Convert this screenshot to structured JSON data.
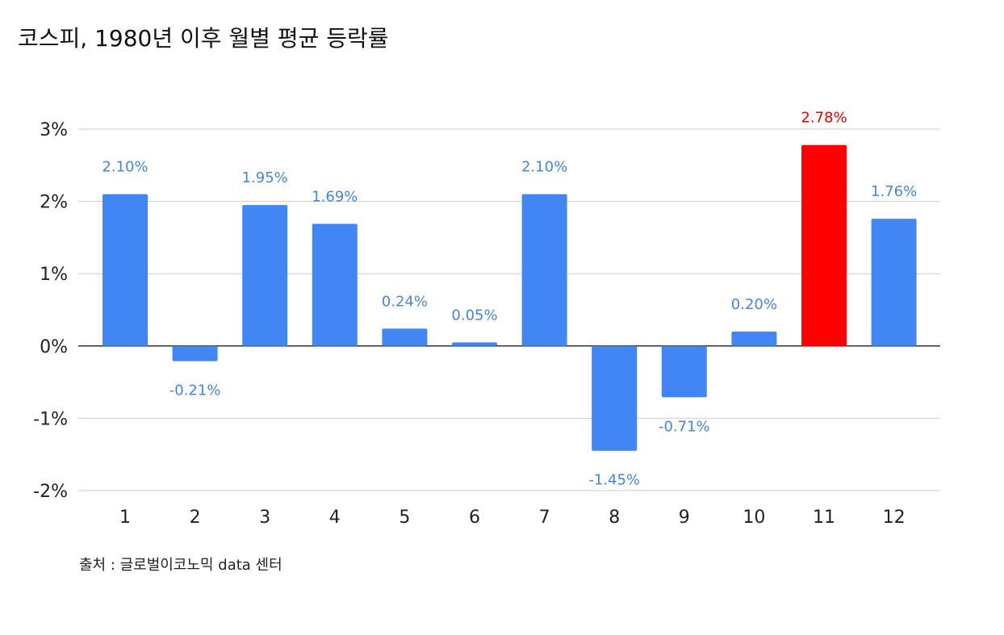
{
  "chart_data": {
    "type": "bar",
    "title": "코스피, 1980년 이후 월별 평균 등락률",
    "source": "출처 : 글로벌이코노믹 data 센터",
    "categories": [
      "1",
      "2",
      "3",
      "4",
      "5",
      "6",
      "7",
      "8",
      "9",
      "10",
      "11",
      "12"
    ],
    "values": [
      2.1,
      -0.21,
      1.95,
      1.69,
      0.24,
      0.05,
      2.1,
      -1.45,
      -0.71,
      0.2,
      2.78,
      1.76
    ],
    "data_labels": [
      "2.10%",
      "-0.21%",
      "1.95%",
      "1.69%",
      "0.24%",
      "0.05%",
      "2.10%",
      "-1.45%",
      "-0.71%",
      "0.20%",
      "2.78%",
      "1.76%"
    ],
    "y_ticks": [
      3,
      2,
      1,
      0,
      -1,
      -2
    ],
    "y_tick_labels": [
      "3%",
      "2%",
      "1%",
      "0%",
      "-1%",
      "-2%"
    ],
    "ylim": [
      -2,
      3
    ],
    "xlabel": "",
    "ylabel": "",
    "grid": true,
    "legend": "none",
    "colors": {
      "bar": "#4285f4",
      "highlight_bar": "#ff0000",
      "label": "#4a86d6",
      "highlight_label": "#e00000",
      "grid": "#cccccc",
      "zero_line": "#333333"
    },
    "highlight_index": 10
  }
}
